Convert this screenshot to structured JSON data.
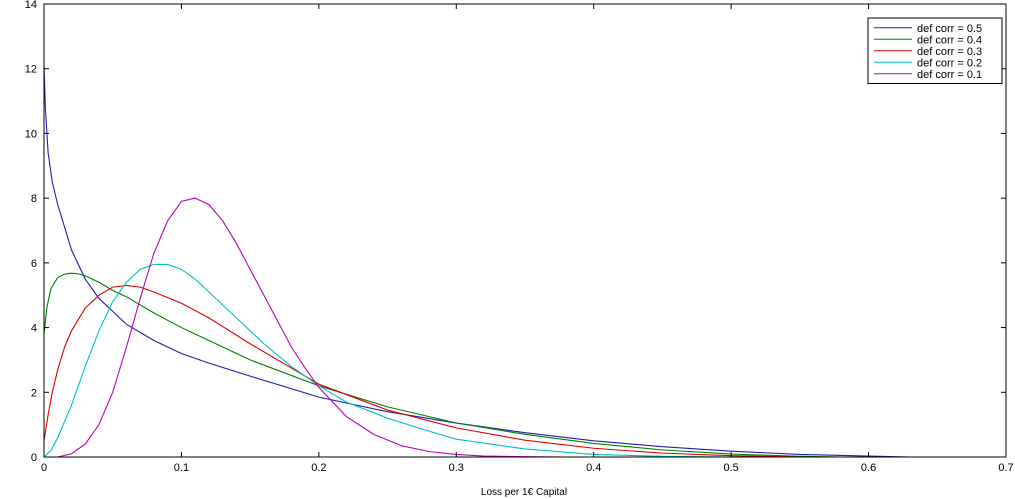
{
  "chart_data": {
    "type": "line",
    "title": "",
    "xlabel": "Loss per 1€ Capital",
    "ylabel": "",
    "xlim": [
      0,
      0.7
    ],
    "ylim": [
      0,
      14
    ],
    "xticks": [
      "0",
      "0.1",
      "0.2",
      "0.3",
      "0.4",
      "0.5",
      "0.6",
      "0.7"
    ],
    "yticks": [
      "0",
      "2",
      "4",
      "6",
      "8",
      "10",
      "12",
      "14"
    ],
    "grid": false,
    "legend_position": "top-right",
    "series": [
      {
        "name": "def corr = 0.5",
        "color": "#1f1fb4",
        "x": [
          0,
          0.001,
          0.003,
          0.006,
          0.01,
          0.015,
          0.02,
          0.03,
          0.04,
          0.05,
          0.06,
          0.08,
          0.1,
          0.12,
          0.15,
          0.2,
          0.25,
          0.3,
          0.35,
          0.4,
          0.45,
          0.5,
          0.55,
          0.6,
          0.63
        ],
        "y": [
          12.1,
          10.8,
          9.4,
          8.5,
          7.8,
          7.1,
          6.4,
          5.5,
          4.9,
          4.5,
          4.1,
          3.6,
          3.2,
          2.9,
          2.5,
          1.85,
          1.4,
          1.05,
          0.75,
          0.5,
          0.32,
          0.18,
          0.08,
          0.03,
          0.0
        ]
      },
      {
        "name": "def corr = 0.4",
        "color": "#008000",
        "x": [
          0,
          0.002,
          0.005,
          0.01,
          0.015,
          0.02,
          0.025,
          0.03,
          0.04,
          0.05,
          0.06,
          0.08,
          0.1,
          0.12,
          0.15,
          0.2,
          0.25,
          0.3,
          0.35,
          0.4,
          0.45,
          0.5,
          0.55,
          0.58
        ],
        "y": [
          3.8,
          4.6,
          5.2,
          5.55,
          5.65,
          5.68,
          5.66,
          5.6,
          5.4,
          5.15,
          4.95,
          4.45,
          4.0,
          3.6,
          3.0,
          2.2,
          1.55,
          1.05,
          0.7,
          0.42,
          0.22,
          0.09,
          0.02,
          0.0
        ]
      },
      {
        "name": "def corr = 0.3",
        "color": "#e00000",
        "x": [
          0,
          0.003,
          0.006,
          0.01,
          0.015,
          0.02,
          0.03,
          0.04,
          0.05,
          0.06,
          0.07,
          0.08,
          0.1,
          0.12,
          0.15,
          0.18,
          0.2,
          0.25,
          0.3,
          0.35,
          0.4,
          0.45,
          0.5,
          0.55
        ],
        "y": [
          0.5,
          1.3,
          2.0,
          2.7,
          3.4,
          3.9,
          4.6,
          5.0,
          5.25,
          5.3,
          5.25,
          5.1,
          4.75,
          4.3,
          3.5,
          2.75,
          2.25,
          1.45,
          0.9,
          0.52,
          0.27,
          0.12,
          0.04,
          0.0
        ]
      },
      {
        "name": "def corr = 0.2",
        "color": "#00c0c0",
        "x": [
          0,
          0.005,
          0.01,
          0.02,
          0.03,
          0.04,
          0.05,
          0.06,
          0.07,
          0.08,
          0.09,
          0.1,
          0.11,
          0.12,
          0.14,
          0.16,
          0.18,
          0.2,
          0.22,
          0.25,
          0.28,
          0.3,
          0.35,
          0.4,
          0.45,
          0.5
        ],
        "y": [
          0.0,
          0.2,
          0.6,
          1.6,
          2.8,
          3.9,
          4.8,
          5.4,
          5.8,
          5.95,
          5.95,
          5.8,
          5.5,
          5.1,
          4.3,
          3.5,
          2.8,
          2.2,
          1.7,
          1.2,
          0.8,
          0.55,
          0.25,
          0.08,
          0.02,
          0.0
        ]
      },
      {
        "name": "def corr = 0.1",
        "color": "#bf00bf",
        "x": [
          0,
          0.01,
          0.02,
          0.03,
          0.04,
          0.05,
          0.06,
          0.07,
          0.08,
          0.09,
          0.1,
          0.11,
          0.12,
          0.13,
          0.14,
          0.15,
          0.16,
          0.17,
          0.18,
          0.19,
          0.2,
          0.22,
          0.24,
          0.26,
          0.28,
          0.3,
          0.32,
          0.35,
          0.38,
          0.4
        ],
        "y": [
          0.0,
          0.0,
          0.1,
          0.4,
          1.0,
          2.0,
          3.4,
          4.9,
          6.3,
          7.3,
          7.9,
          8.0,
          7.8,
          7.3,
          6.6,
          5.8,
          5.0,
          4.2,
          3.4,
          2.75,
          2.15,
          1.25,
          0.7,
          0.35,
          0.17,
          0.08,
          0.03,
          0.01,
          0.0,
          0.0
        ]
      }
    ]
  }
}
